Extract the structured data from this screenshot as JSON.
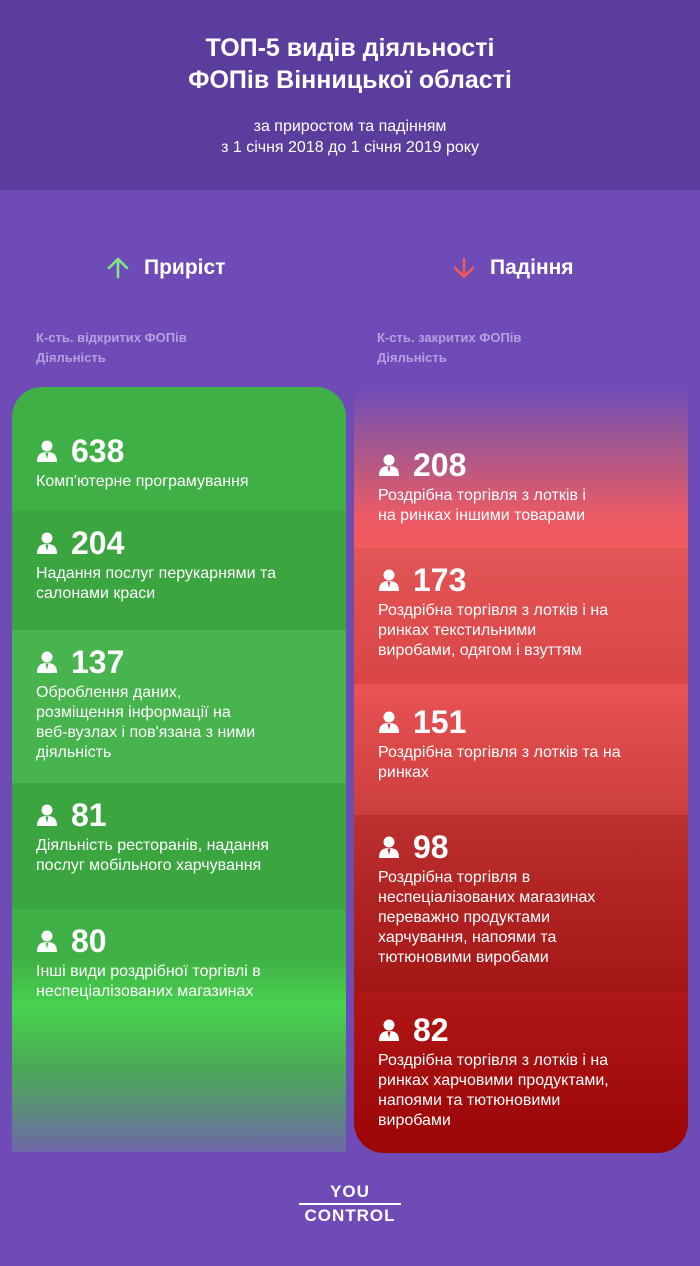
{
  "header": {
    "title_line1": "ТОП-5 видів діяльності",
    "title_line2": "ФОПів Вінницької області",
    "subtitle_line1": "за приростом та падінням",
    "subtitle_line2": "з 1 січня 2018 до 1 січня 2019 року"
  },
  "growth": {
    "heading": "Приріст",
    "arrow_color": "#7ee787",
    "meta_line1": "К-сть. відкритих ФОПів",
    "meta_line2": "Діяльність",
    "items": [
      {
        "count": "638",
        "desc": [
          "Комп'ютерне програмування"
        ]
      },
      {
        "count": "204",
        "desc": [
          "Надання послуг перукарнями та",
          "салонами краси"
        ]
      },
      {
        "count": "137",
        "desc": [
          "Оброблення даних,",
          "розміщення інформації на",
          "веб-вузлах і пов'язана з ними",
          "діяльність"
        ]
      },
      {
        "count": "81",
        "desc": [
          "Діяльність ресторанів, надання",
          "послуг мобільного харчування"
        ]
      },
      {
        "count": "80",
        "desc": [
          "Інші види роздрібної торгівлі в",
          "неспеціалізованих магазинах"
        ]
      }
    ]
  },
  "decline": {
    "heading": "Падіння",
    "arrow_color": "#f05a5a",
    "meta_line1": "К-сть. закритих ФОПів",
    "meta_line2": "Діяльність",
    "items": [
      {
        "count": "208",
        "desc": [
          "Роздрібна торгівля з лотків і",
          "на ринках іншими товарами"
        ]
      },
      {
        "count": "173",
        "desc": [
          "Роздрібна торгівля з лотків і на",
          "ринках текстильними",
          "виробами, одягом і взуттям"
        ]
      },
      {
        "count": "151",
        "desc": [
          "Роздрібна торгівля з лотків та на",
          "ринках"
        ]
      },
      {
        "count": "98",
        "desc": [
          "Роздрібна торгівля в",
          "неспеціалізованих магазинах",
          "переважно продуктами",
          "харчування, напоями та",
          "тютюновими виробами"
        ]
      },
      {
        "count": "82",
        "desc": [
          "Роздрібна торгівля з лотків і на",
          "ринках харчовими продуктами,",
          "напоями та тютюновими",
          "виробами"
        ]
      }
    ]
  },
  "logo": {
    "line1": "YOU",
    "line2": "CONTROL"
  },
  "icons": {
    "person": "person-icon",
    "up": "arrow-up-icon",
    "down": "arrow-down-icon"
  }
}
